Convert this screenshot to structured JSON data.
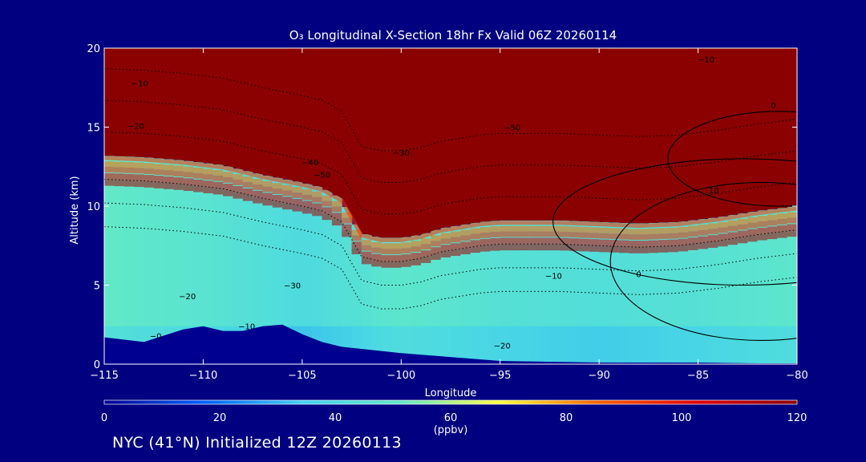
{
  "chart_data": {
    "type": "heatmap",
    "title": "O₃ Longitudinal X-Section 18hr  Fx Valid 06Z 20260114",
    "xlabel": "Longitude",
    "ylabel": "Altitude (km)",
    "xlim": [
      -115,
      -80
    ],
    "ylim": [
      0,
      20
    ],
    "x_ticks": [
      -115,
      -110,
      -105,
      -100,
      -95,
      -90,
      -85,
      -80
    ],
    "x_tick_labels": [
      "−115",
      "−110",
      "−105",
      "−100",
      "−95",
      "−90",
      "−85",
      "−80"
    ],
    "y_ticks": [
      0,
      5,
      10,
      15,
      20
    ],
    "y_tick_labels": [
      "0",
      "5",
      "10",
      "15",
      "20"
    ],
    "colorbar": {
      "min": 0,
      "max": 120,
      "unit": "(ppbv)",
      "ticks": [
        0,
        20,
        40,
        60,
        80,
        100,
        120
      ],
      "colors": [
        "#000090",
        "#0060ff",
        "#40d0f0",
        "#60e8c8",
        "#ffff40",
        "#ff6000",
        "#e00000",
        "#8b0000"
      ]
    },
    "fields": {
      "tropopause_altitude_km": {
        "x": [
          -115,
          -113,
          -111,
          -109,
          -107,
          -105,
          -104,
          -103,
          -102,
          -101,
          -100,
          -99,
          -98,
          -97,
          -96,
          -95,
          -94,
          -92,
          -90,
          -88,
          -86,
          -84,
          -82,
          -80
        ],
        "y": [
          13.2,
          13.1,
          12.9,
          12.6,
          12.0,
          11.5,
          11.2,
          10.5,
          8.3,
          8.0,
          8.0,
          8.2,
          8.6,
          8.8,
          9.0,
          9.1,
          9.1,
          9.1,
          9.0,
          8.9,
          9.0,
          9.3,
          9.7,
          10.0
        ]
      },
      "terrain_altitude_km": {
        "x": [
          -115,
          -113,
          -111,
          -110,
          -109,
          -108,
          -107,
          -106,
          -105,
          -104,
          -103,
          -100,
          -97,
          -95,
          -90,
          -85,
          -82,
          -80
        ],
        "y": [
          1.7,
          1.4,
          2.2,
          2.4,
          2.1,
          2.1,
          2.4,
          2.5,
          1.9,
          1.4,
          1.1,
          0.7,
          0.4,
          0.2,
          0.1,
          0.1,
          0.05,
          0.05
        ]
      },
      "background_ppbv_by_lon": {
        "x": [
          -115,
          -110,
          -105,
          -102,
          -100,
          -95,
          -90,
          -85,
          -80
        ],
        "v": [
          52,
          48,
          42,
          46,
          50,
          46,
          44,
          46,
          50
        ]
      }
    },
    "contours": {
      "dotted_labels": [
        {
          "text": "−10",
          "x": -113.2,
          "y": 17.6
        },
        {
          "text": "−20",
          "x": -113.4,
          "y": 14.9
        },
        {
          "text": "−40",
          "x": -104.6,
          "y": 12.6
        },
        {
          "text": "−50",
          "x": -104.0,
          "y": 11.8
        },
        {
          "text": "−30",
          "x": -100.0,
          "y": 13.2
        },
        {
          "text": "−50",
          "x": -94.4,
          "y": 14.8
        },
        {
          "text": "−10",
          "x": -84.6,
          "y": 19.1
        },
        {
          "text": "−30",
          "x": -105.5,
          "y": 4.8
        },
        {
          "text": "−20",
          "x": -110.8,
          "y": 4.1
        },
        {
          "text": "−10",
          "x": -107.8,
          "y": 2.2
        },
        {
          "text": "−0",
          "x": -112.4,
          "y": 1.6
        },
        {
          "text": "−10",
          "x": -92.3,
          "y": 5.4
        },
        {
          "text": "−20",
          "x": -94.9,
          "y": 1.0
        }
      ],
      "solid_labels": [
        {
          "text": "0",
          "x": -81.2,
          "y": 16.2
        },
        {
          "text": "10",
          "x": -84.2,
          "y": 10.8
        },
        {
          "text": "0",
          "x": -88.0,
          "y": 5.5
        }
      ]
    },
    "footer": "NYC (41°N) Initialized 12Z 20260113"
  }
}
